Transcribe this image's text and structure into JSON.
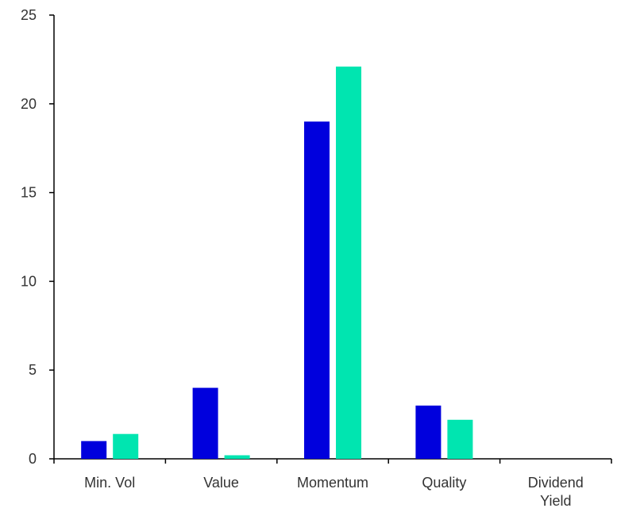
{
  "chart_data": {
    "type": "bar",
    "title": "",
    "xlabel": "",
    "ylabel": "",
    "categories": [
      [
        "Min. Vol"
      ],
      [
        "Value"
      ],
      [
        "Momentum"
      ],
      [
        "Quality"
      ],
      [
        "Dividend",
        "Yield"
      ]
    ],
    "series": [
      {
        "color": "#0000dd",
        "values": [
          1,
          4,
          19,
          3,
          0
        ]
      },
      {
        "color": "#00e5b0",
        "values": [
          1.4,
          0.2,
          22.1,
          2.2,
          0
        ]
      }
    ],
    "ylim": [
      0,
      25
    ],
    "yticks": [
      0,
      5,
      10,
      15,
      20,
      25
    ],
    "grid": false,
    "legend": "none"
  }
}
